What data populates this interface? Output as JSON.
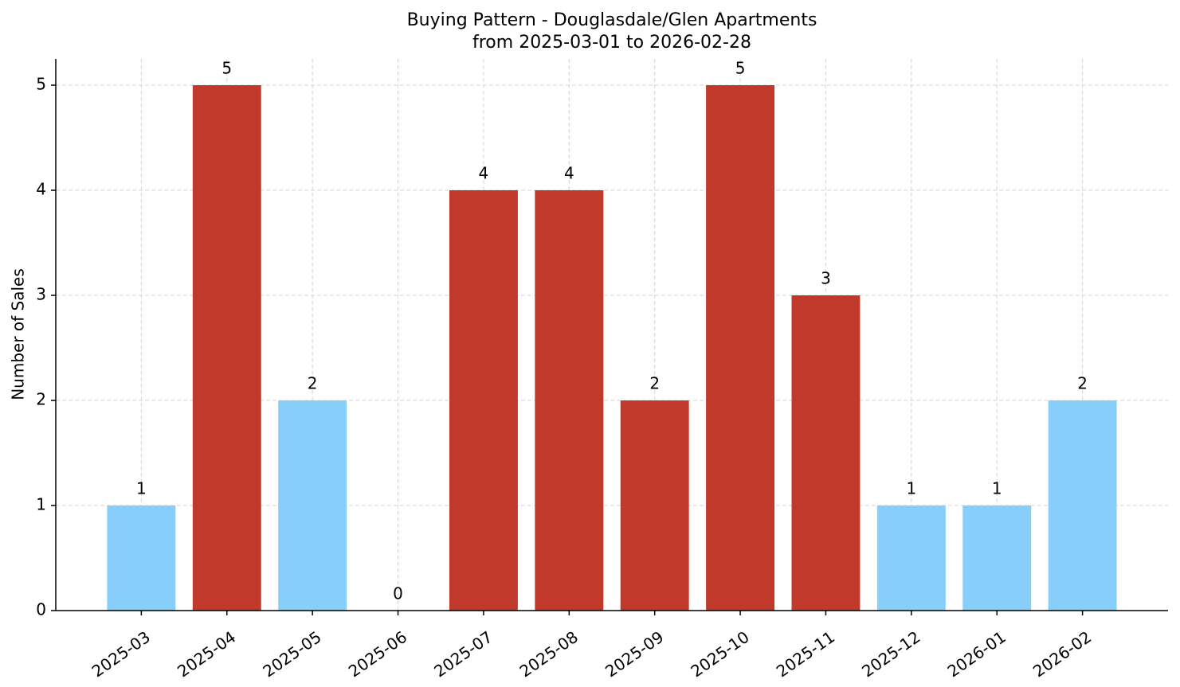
{
  "chart_data": {
    "type": "bar",
    "title": "Buying Pattern - Douglasdale/Glen Apartments",
    "subtitle": "from 2025-03-01 to 2026-02-28",
    "y_label": "Number of Sales",
    "categories": [
      "2025-03",
      "2025-04",
      "2025-05",
      "2025-06",
      "2025-07",
      "2025-08",
      "2025-09",
      "2025-10",
      "2025-11",
      "2025-12",
      "2026-01",
      "2026-02"
    ],
    "values": [
      1,
      5,
      2,
      0,
      4,
      4,
      2,
      5,
      3,
      1,
      1,
      2
    ],
    "colors": [
      "#87cefa",
      "#c0392b",
      "#87cefa",
      "#87cefa",
      "#c0392b",
      "#c0392b",
      "#c0392b",
      "#c0392b",
      "#c0392b",
      "#87cefa",
      "#87cefa",
      "#87cefa"
    ],
    "ylim": [
      0,
      5.25
    ],
    "yticks": [
      0,
      1,
      2,
      3,
      4,
      5
    ],
    "grid": true
  }
}
